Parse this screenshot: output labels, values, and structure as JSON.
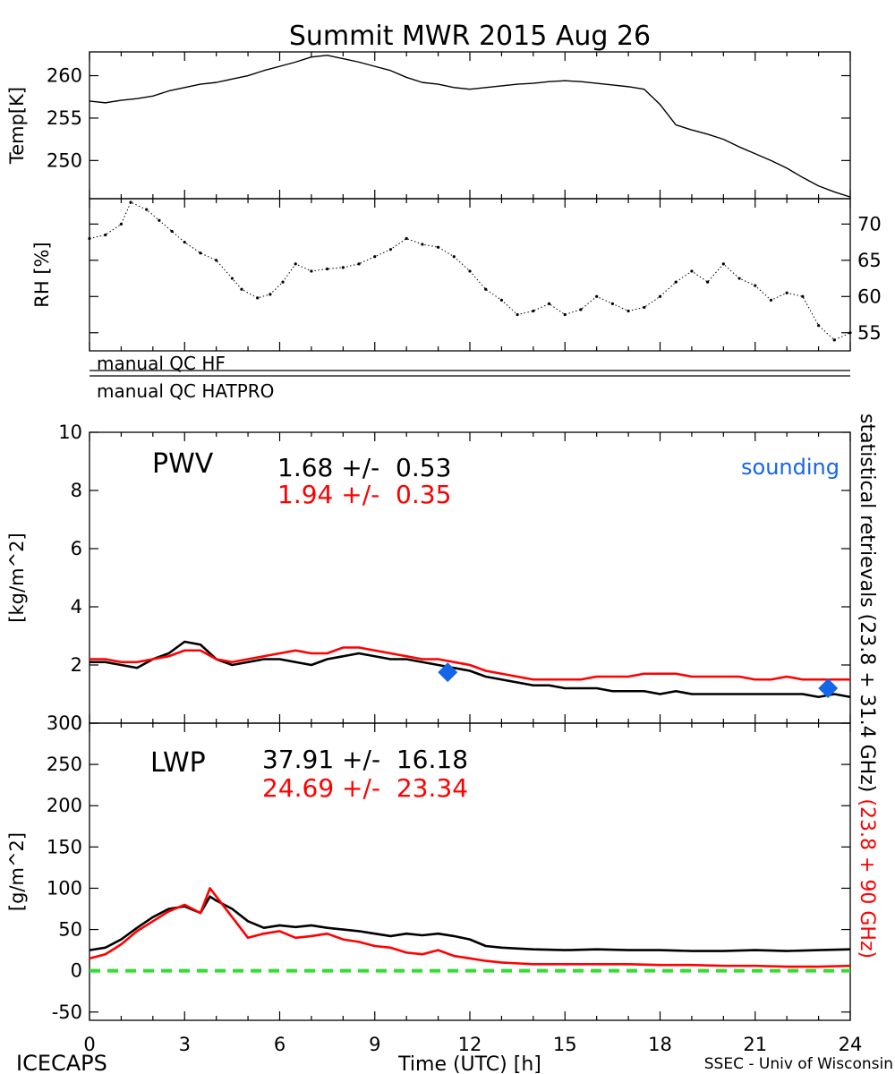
{
  "chart_data": [
    {
      "id": "temp",
      "type": "line",
      "title": "Summit MWR 2015 Aug 26",
      "ylabel": "Temp[K]",
      "xlim": [
        0,
        24
      ],
      "ylim": [
        245.5,
        262.8
      ],
      "yticks": [
        250,
        255,
        260
      ],
      "series": [
        {
          "color": "#000000",
          "x": [
            0,
            0.5,
            1,
            1.5,
            2,
            2.5,
            3,
            3.5,
            4,
            4.5,
            5,
            5.5,
            6,
            6.5,
            7,
            7.5,
            8,
            8.5,
            9,
            9.5,
            10,
            10.5,
            11,
            11.5,
            12,
            12.5,
            13,
            13.5,
            14,
            14.5,
            15,
            15.5,
            16,
            16.5,
            17,
            17.5,
            18,
            18.5,
            19,
            19.5,
            20,
            20.5,
            21,
            21.5,
            22,
            22.5,
            23,
            23.5,
            24
          ],
          "y": [
            257.0,
            256.8,
            257.1,
            257.3,
            257.6,
            258.2,
            258.6,
            259.0,
            259.2,
            259.6,
            260.0,
            260.6,
            261.1,
            261.6,
            262.2,
            262.4,
            262.0,
            261.6,
            261.1,
            260.6,
            259.8,
            259.2,
            259.0,
            258.6,
            258.4,
            258.6,
            258.8,
            259.0,
            259.1,
            259.3,
            259.4,
            259.3,
            259.1,
            258.9,
            258.7,
            258.4,
            256.6,
            254.2,
            253.6,
            253.1,
            252.5,
            251.6,
            250.8,
            250.0,
            249.1,
            248.0,
            247.0,
            246.3,
            245.7
          ]
        }
      ]
    },
    {
      "id": "rh",
      "type": "scatter",
      "ylabel": "RH [%]",
      "xlim": [
        0,
        24
      ],
      "ylim": [
        52.5,
        73.5
      ],
      "yticks": [
        55,
        60,
        65,
        70
      ],
      "series": [
        {
          "color": "#000000",
          "x": [
            0,
            0.5,
            1,
            1.3,
            1.8,
            2.2,
            2.6,
            3,
            3.5,
            4,
            4.5,
            4.8,
            5.3,
            5.7,
            6.1,
            6.5,
            7,
            7.5,
            8,
            8.5,
            9,
            9.5,
            10,
            10.5,
            11,
            11.5,
            12,
            12.5,
            13,
            13.5,
            14,
            14.5,
            15,
            15.5,
            16,
            16.5,
            17,
            17.5,
            18,
            18.5,
            19,
            19.5,
            20,
            20.5,
            21,
            21.5,
            22,
            22.5,
            23,
            23.5,
            24
          ],
          "y": [
            68.0,
            68.5,
            70.0,
            73.0,
            72.0,
            70.5,
            69.0,
            67.5,
            66.0,
            65.0,
            62.5,
            61.0,
            59.8,
            60.3,
            62.0,
            64.5,
            63.5,
            63.8,
            64.0,
            64.5,
            65.5,
            66.5,
            68.0,
            67.2,
            66.8,
            65.5,
            63.5,
            61.0,
            59.5,
            57.5,
            58.0,
            59.0,
            57.5,
            58.2,
            60.0,
            59.0,
            58.0,
            58.5,
            60.0,
            62.0,
            63.5,
            62.0,
            64.5,
            62.5,
            61.5,
            59.5,
            60.5,
            60.0,
            56.0,
            54.0,
            55.0
          ]
        }
      ]
    },
    {
      "id": "pwv",
      "type": "line",
      "ylabel": "[kg/m^2]",
      "xlim": [
        0,
        24
      ],
      "ylim": [
        0,
        10
      ],
      "yticks": [
        0,
        2,
        4,
        6,
        8,
        10
      ],
      "series": [
        {
          "color": "#000000",
          "x": [
            0,
            0.5,
            1,
            1.5,
            2,
            2.5,
            3,
            3.5,
            4,
            4.5,
            5,
            5.5,
            6,
            6.5,
            7,
            7.5,
            8,
            8.5,
            9,
            9.5,
            10,
            10.5,
            11,
            11.5,
            12,
            12.5,
            13,
            13.5,
            14,
            14.5,
            15,
            15.5,
            16,
            16.5,
            17,
            17.5,
            18,
            18.5,
            19,
            19.5,
            20,
            20.5,
            21,
            21.5,
            22,
            22.5,
            23,
            23.5,
            24
          ],
          "y": [
            2.1,
            2.1,
            2.0,
            1.9,
            2.2,
            2.4,
            2.8,
            2.7,
            2.2,
            2.0,
            2.1,
            2.2,
            2.2,
            2.1,
            2.0,
            2.2,
            2.3,
            2.4,
            2.3,
            2.2,
            2.2,
            2.1,
            2.0,
            1.9,
            1.8,
            1.6,
            1.5,
            1.4,
            1.3,
            1.3,
            1.2,
            1.2,
            1.2,
            1.1,
            1.1,
            1.1,
            1.0,
            1.1,
            1.0,
            1.0,
            1.0,
            1.0,
            1.0,
            1.0,
            1.0,
            1.0,
            0.9,
            1.0,
            0.9
          ]
        },
        {
          "color": "#ff0000",
          "x": [
            0,
            0.5,
            1,
            1.5,
            2,
            2.5,
            3,
            3.5,
            4,
            4.5,
            5,
            5.5,
            6,
            6.5,
            7,
            7.5,
            8,
            8.5,
            9,
            9.5,
            10,
            10.5,
            11,
            11.5,
            12,
            12.5,
            13,
            13.5,
            14,
            14.5,
            15,
            15.5,
            16,
            16.5,
            17,
            17.5,
            18,
            18.5,
            19,
            19.5,
            20,
            20.5,
            21,
            21.5,
            22,
            22.5,
            23,
            23.5,
            24
          ],
          "y": [
            2.2,
            2.2,
            2.1,
            2.1,
            2.2,
            2.3,
            2.5,
            2.5,
            2.2,
            2.1,
            2.2,
            2.3,
            2.4,
            2.5,
            2.4,
            2.4,
            2.6,
            2.6,
            2.5,
            2.4,
            2.3,
            2.2,
            2.2,
            2.1,
            2.0,
            1.8,
            1.7,
            1.6,
            1.5,
            1.5,
            1.5,
            1.5,
            1.6,
            1.6,
            1.6,
            1.7,
            1.7,
            1.7,
            1.6,
            1.6,
            1.6,
            1.6,
            1.5,
            1.5,
            1.6,
            1.5,
            1.5,
            1.5,
            1.5
          ]
        }
      ],
      "sounding_points": {
        "x": [
          11.3,
          23.3
        ],
        "y": [
          1.75,
          1.2
        ]
      }
    },
    {
      "id": "lwp",
      "type": "line",
      "ylabel": "[g/m^2]",
      "xlabel": "Time (UTC) [h]",
      "xlim": [
        0,
        24
      ],
      "ylim": [
        -60,
        300
      ],
      "yticks": [
        -50,
        0,
        50,
        100,
        150,
        200,
        250,
        300
      ],
      "xticks": [
        0,
        3,
        6,
        9,
        12,
        15,
        18,
        21,
        24
      ],
      "series": [
        {
          "color": "#000000",
          "x": [
            0,
            0.5,
            1,
            1.5,
            2,
            2.5,
            3,
            3.5,
            3.8,
            4,
            4.5,
            5,
            5.5,
            6,
            6.5,
            7,
            7.5,
            8,
            8.5,
            9,
            9.5,
            10,
            10.5,
            11,
            11.5,
            12,
            12.5,
            13,
            13.5,
            14,
            15,
            16,
            17,
            18,
            19,
            20,
            21,
            22,
            23,
            24
          ],
          "y": [
            25,
            28,
            38,
            52,
            65,
            75,
            78,
            70,
            90,
            85,
            75,
            60,
            52,
            55,
            53,
            55,
            52,
            50,
            48,
            45,
            42,
            45,
            43,
            45,
            42,
            38,
            30,
            28,
            27,
            26,
            25,
            26,
            25,
            25,
            24,
            24,
            25,
            24,
            25,
            26
          ]
        },
        {
          "color": "#ff0000",
          "x": [
            0,
            0.5,
            1,
            1.5,
            2,
            2.5,
            3,
            3.5,
            3.8,
            4,
            4.5,
            5,
            5.5,
            6,
            6.5,
            7,
            7.5,
            8,
            8.5,
            9,
            9.5,
            10,
            10.5,
            11,
            11.5,
            12,
            12.5,
            13,
            13.5,
            14,
            15,
            16,
            17,
            18,
            19,
            20,
            21,
            22,
            23,
            24
          ],
          "y": [
            15,
            20,
            32,
            48,
            60,
            72,
            80,
            70,
            100,
            90,
            65,
            40,
            45,
            48,
            40,
            42,
            45,
            38,
            35,
            30,
            28,
            22,
            20,
            25,
            18,
            15,
            12,
            10,
            9,
            8,
            8,
            8,
            8,
            7,
            7,
            6,
            6,
            5,
            5,
            6
          ]
        }
      ],
      "reference_line": {
        "y": 0,
        "color": "#33dd33",
        "style": "dashed"
      }
    }
  ],
  "flags": {
    "row1": "manual QC HF",
    "row2": "manual QC HATPRO"
  },
  "pwv_text": {
    "label": "PWV",
    "stat_black": "1.68 +/-  0.53",
    "stat_red": "1.94 +/-  0.35",
    "sounding_label": "sounding",
    "sounding_color": "#1565e8"
  },
  "lwp_text": {
    "label": "LWP",
    "stat_black": "37.91 +/-  16.18",
    "stat_red": "24.69 +/-  23.34"
  },
  "right_annotation": {
    "black_part": "statistical retrievals (23.8 + 31.4 GHz)",
    "red_part": "(23.8 + 90 GHz)"
  },
  "footer": {
    "left": "ICECAPS",
    "right": "SSEC - Univ of Wisconsin"
  }
}
